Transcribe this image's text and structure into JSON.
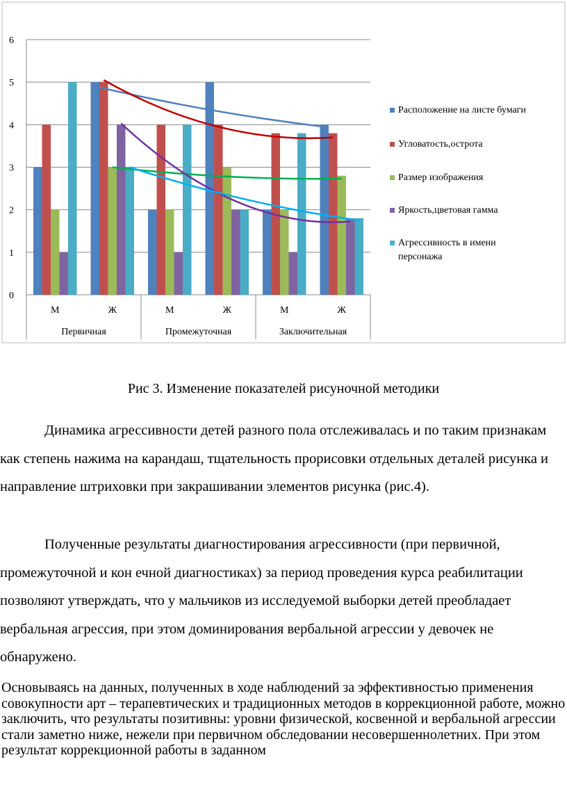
{
  "chart_data": {
    "type": "bar",
    "categories": [
      "М",
      "Ж",
      "М",
      "Ж",
      "М",
      "Ж"
    ],
    "groups": [
      "Первичная",
      "Промежуточная",
      "Заключительная"
    ],
    "ylim": [
      0,
      6
    ],
    "yticks": [
      "0",
      "1",
      "2",
      "3",
      "4",
      "5",
      "6"
    ],
    "grid": true,
    "legend_position": "right",
    "series": [
      {
        "name": "Расположение на листе бумаги",
        "color": "#4f81bd",
        "values": [
          3,
          5,
          2,
          5,
          2,
          4
        ],
        "trend": [
          4.9,
          4.35,
          3.95
        ],
        "trend_color": "#4f81bd"
      },
      {
        "name": "Угловатость,острота",
        "color": "#c0504d",
        "values": [
          4,
          5,
          4,
          4,
          3.8,
          3.8
        ],
        "trend": [
          5.05,
          3.95,
          3.7
        ],
        "trend_color": "#c00000"
      },
      {
        "name": "Размер изображения",
        "color": "#9bbb59",
        "values": [
          2,
          3,
          2,
          3,
          2,
          2.8
        ],
        "trend": [
          3,
          2.78,
          2.73
        ],
        "trend_color": "#00b050"
      },
      {
        "name": "Яркость,цветовая гамма",
        "color": "#8064a2",
        "values": [
          1,
          4,
          1,
          2,
          1,
          1.8
        ],
        "trend": [
          4.03,
          2.2,
          1.72
        ],
        "trend_color": "#7030a0"
      },
      {
        "name": "Агрессивность в имени персонажа",
        "color": "#4bacc6",
        "values": [
          5,
          3,
          4,
          2,
          3.8,
          1.8
        ],
        "trend": [
          3,
          2.25,
          1.75
        ],
        "trend_color": "#00b0f0"
      }
    ]
  },
  "caption": "Рис 3. Изменение показателей рисуночной методики",
  "paragraph1": "Динамика агрессивности детей разного пола отслеживалась и по  таким признакам как степень нажима на карандаш, тщательность прорисовки отдельных деталей рисунка и направление штриховки при закрашивании элементов рисунка (рис.4).",
  "paragraph2": "Полученные результаты диагностирования агрессивности (при первичной, промежуточной и кон ечной диагностиках) за период проведения курса реабилитации позволяют утверждать, что у мальчиков из исследуемой выборки детей преобладает вербальная агрессия, при этом доминирования вербальной агрессии у девочек не обнаружено.",
  "paragraph3": "Основываясь на данных, полученных в ходе наблюдений за эффективностью применения совокупности арт – терапевтических и традиционных методов в коррекционной работе, можно заключить, что результаты позитивны: уровни физической, косвенной и вербальной агрессии стали заметно ниже, нежели при первичном обследовании несовершеннолетних. При этом результат коррекционной работы в заданном"
}
